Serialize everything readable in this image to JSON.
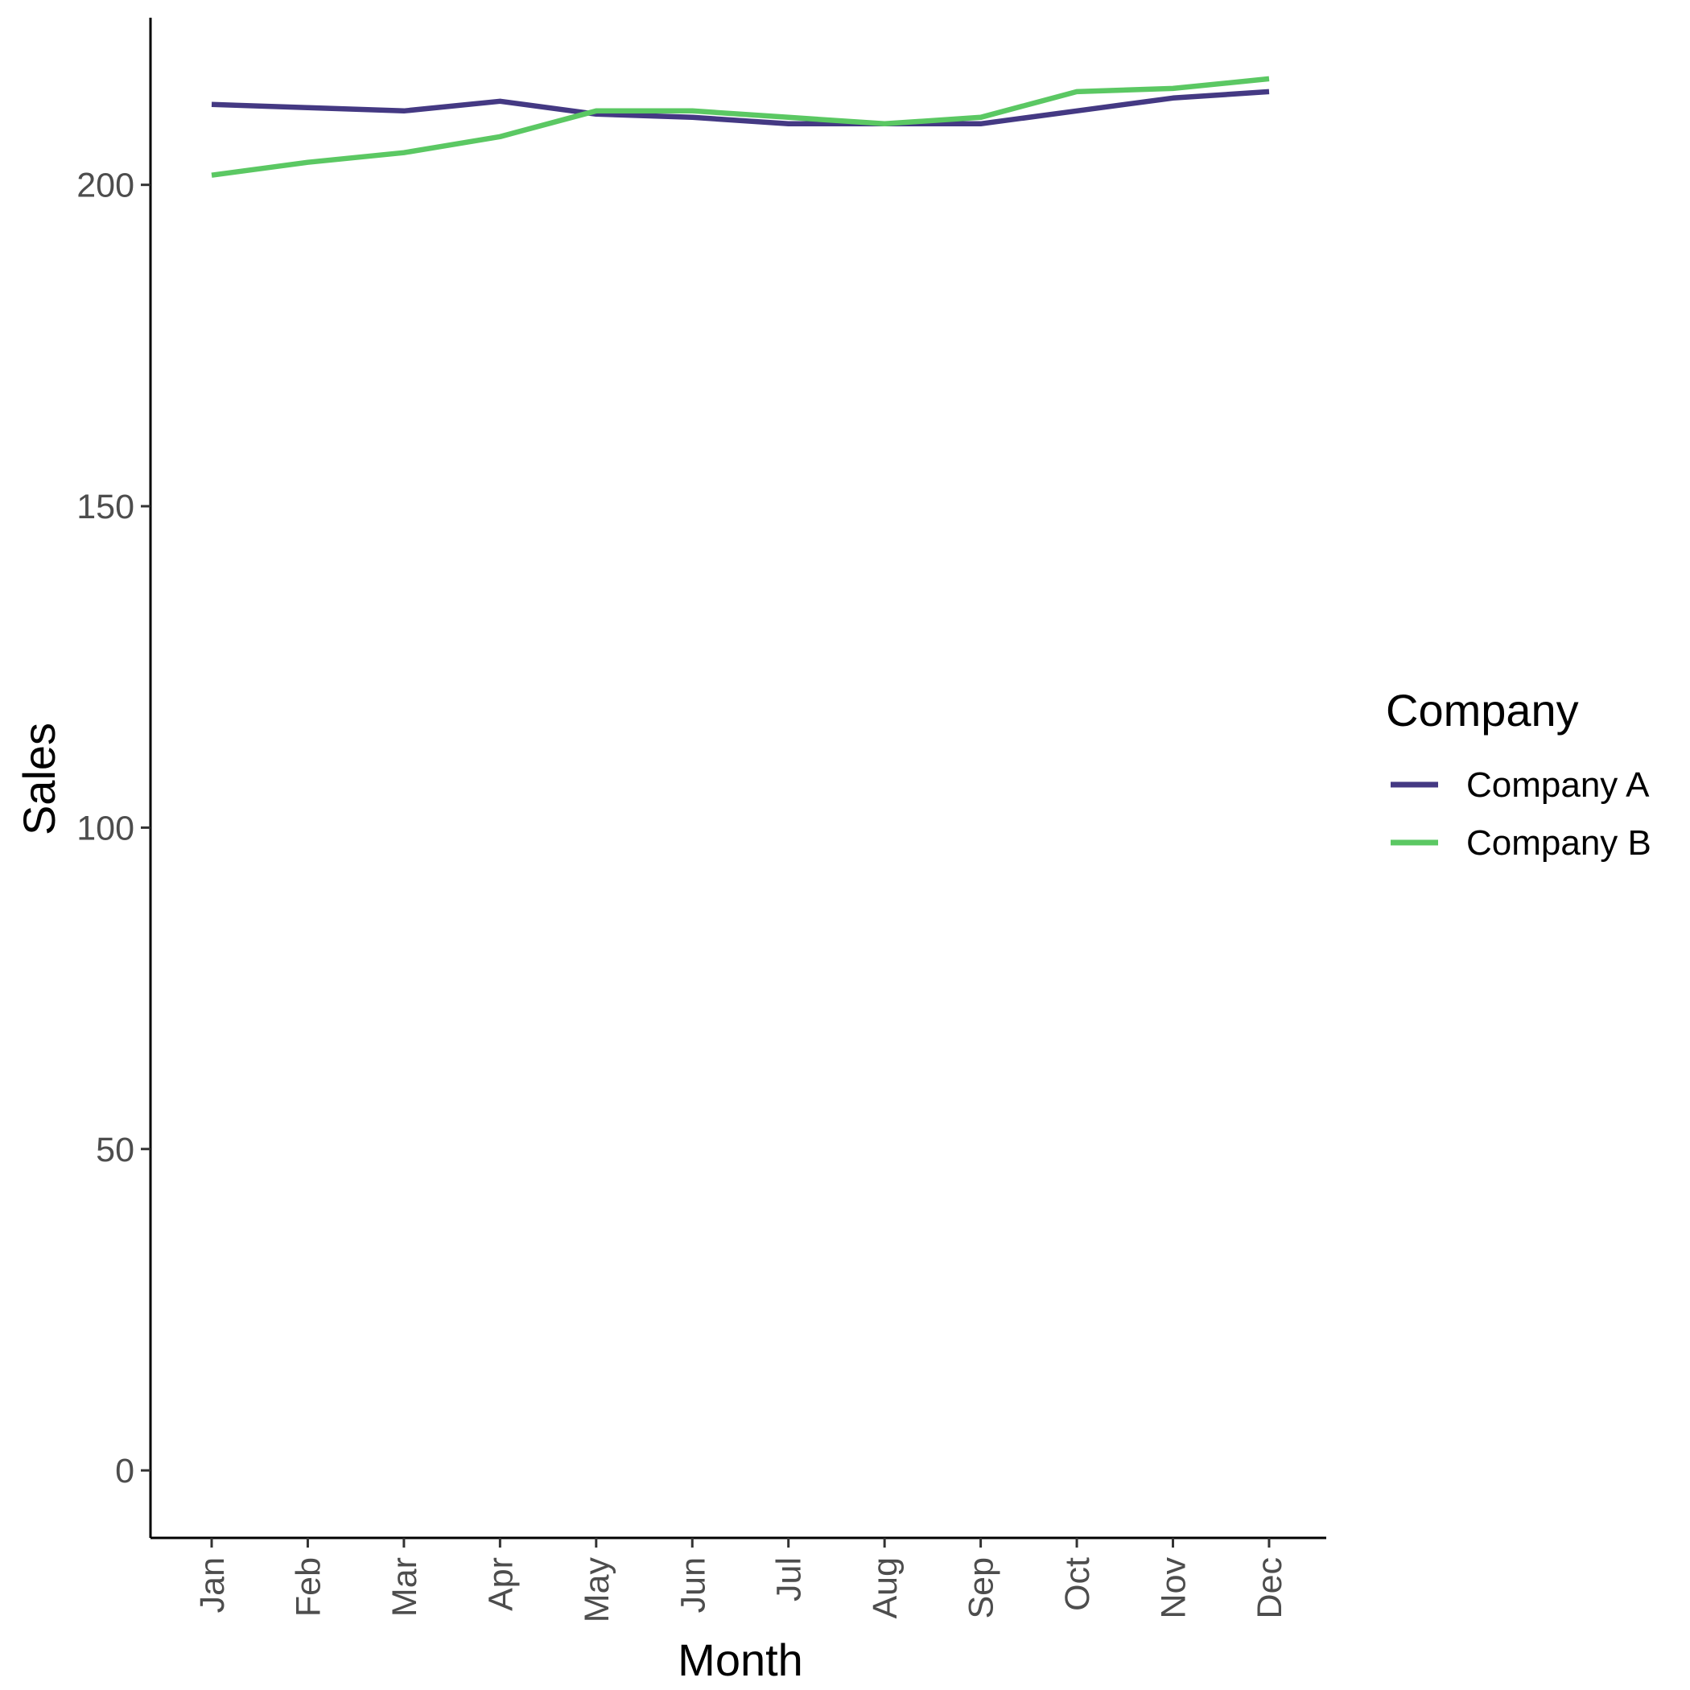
{
  "chart_data": {
    "type": "line",
    "title": "",
    "xlabel": "Month",
    "ylabel": "Sales",
    "categories": [
      "Jan",
      "Feb",
      "Mar",
      "Apr",
      "May",
      "Jun",
      "Jul",
      "Aug",
      "Sep",
      "Oct",
      "Nov",
      "Dec"
    ],
    "ylim": [
      -10.5,
      226
    ],
    "yticks": [
      0,
      50,
      100,
      150,
      200
    ],
    "grid": false,
    "legend": {
      "title": "Company",
      "position": "right"
    },
    "series": [
      {
        "name": "Company A",
        "color": "#443983",
        "values": [
          212.5,
          212,
          211.5,
          213,
          211,
          210.5,
          209.5,
          209.5,
          209.5,
          211.5,
          213.5,
          214.5
        ]
      },
      {
        "name": "Company B",
        "color": "#5BC863",
        "values": [
          201.5,
          203.5,
          205,
          207.5,
          211.5,
          211.5,
          210.5,
          209.5,
          210.5,
          214.5,
          215,
          216.5
        ]
      }
    ]
  }
}
